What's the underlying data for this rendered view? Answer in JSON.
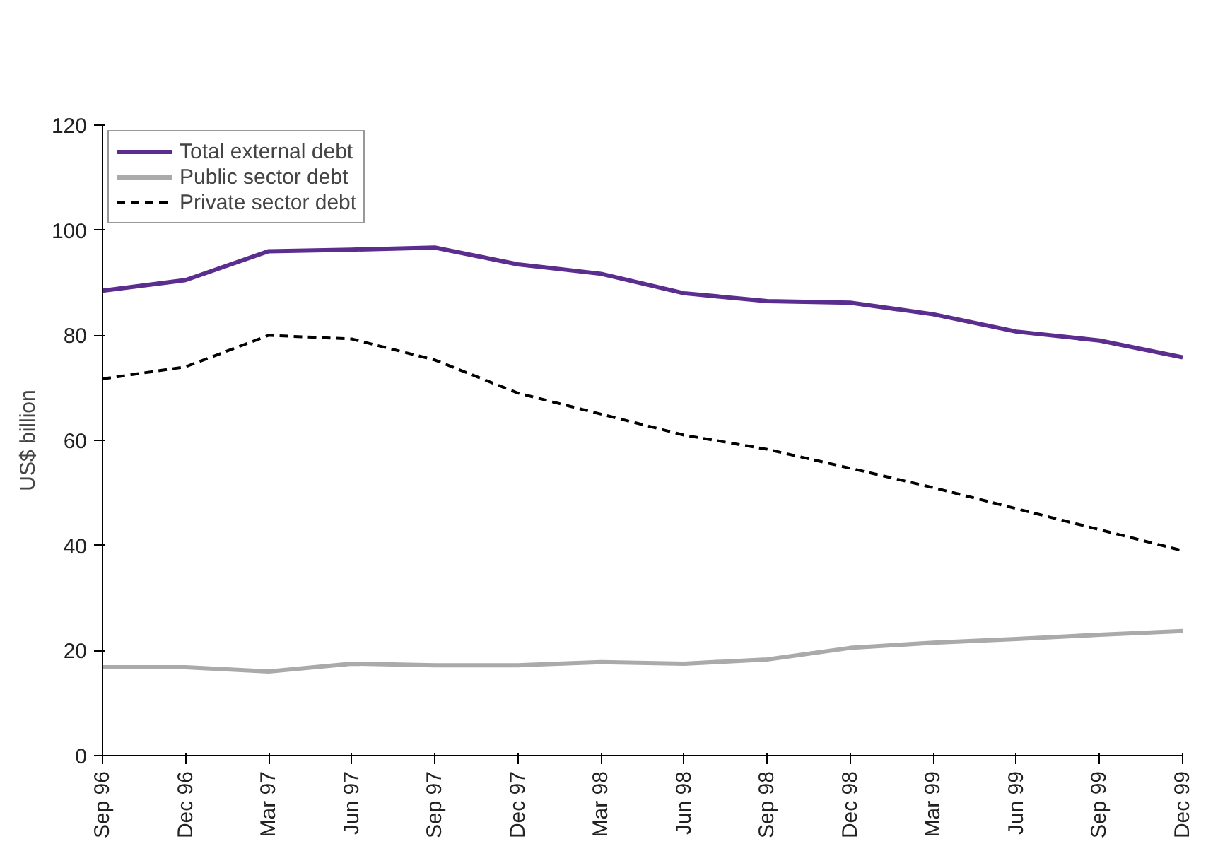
{
  "chart_data": {
    "type": "line",
    "ylabel": "US$ billion",
    "categories": [
      "Sep 96",
      "Dec 96",
      "Mar 97",
      "Jun 97",
      "Sep 97",
      "Dec 97",
      "Mar 98",
      "Jun 98",
      "Sep 98",
      "Dec 98",
      "Mar 99",
      "Jun 99",
      "Sep 99",
      "Dec 99"
    ],
    "series": [
      {
        "name": "Total external debt",
        "color": "#5b2d8e",
        "line_style": "solid",
        "values": [
          88.5,
          90.5,
          96,
          96.3,
          96.7,
          93.5,
          91.7,
          88,
          86.5,
          86.2,
          84,
          80.7,
          79,
          75.8
        ]
      },
      {
        "name": "Public sector debt",
        "color": "#aaaaaa",
        "line_style": "solid",
        "values": [
          16.8,
          16.8,
          16,
          17.5,
          17.2,
          17.2,
          17.8,
          17.5,
          18.3,
          20.5,
          21.5,
          22.2,
          23,
          23.7
        ]
      },
      {
        "name": "Private sector debt",
        "color": "#000000",
        "line_style": "dashed",
        "values": [
          71.7,
          74,
          80,
          79.3,
          75.3,
          69,
          65,
          61,
          58.3,
          54.7,
          51,
          47,
          43,
          39
        ]
      }
    ],
    "ylim": [
      0,
      120
    ],
    "yticks": [
      0,
      20,
      40,
      60,
      80,
      100,
      120
    ],
    "grid": false,
    "legend": "top left",
    "marker": "none"
  }
}
